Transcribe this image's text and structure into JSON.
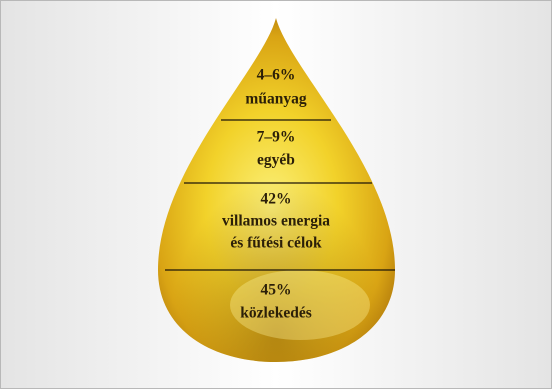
{
  "segments": [
    {
      "share": "4–6%",
      "lines": [
        "műanyag"
      ]
    },
    {
      "share": "7–9%",
      "lines": [
        "egyéb"
      ]
    },
    {
      "share": "42%",
      "lines": [
        "villamos energia",
        "és fűtési célok"
      ]
    },
    {
      "share": "45%",
      "lines": [
        "közlekedés"
      ]
    }
  ]
}
